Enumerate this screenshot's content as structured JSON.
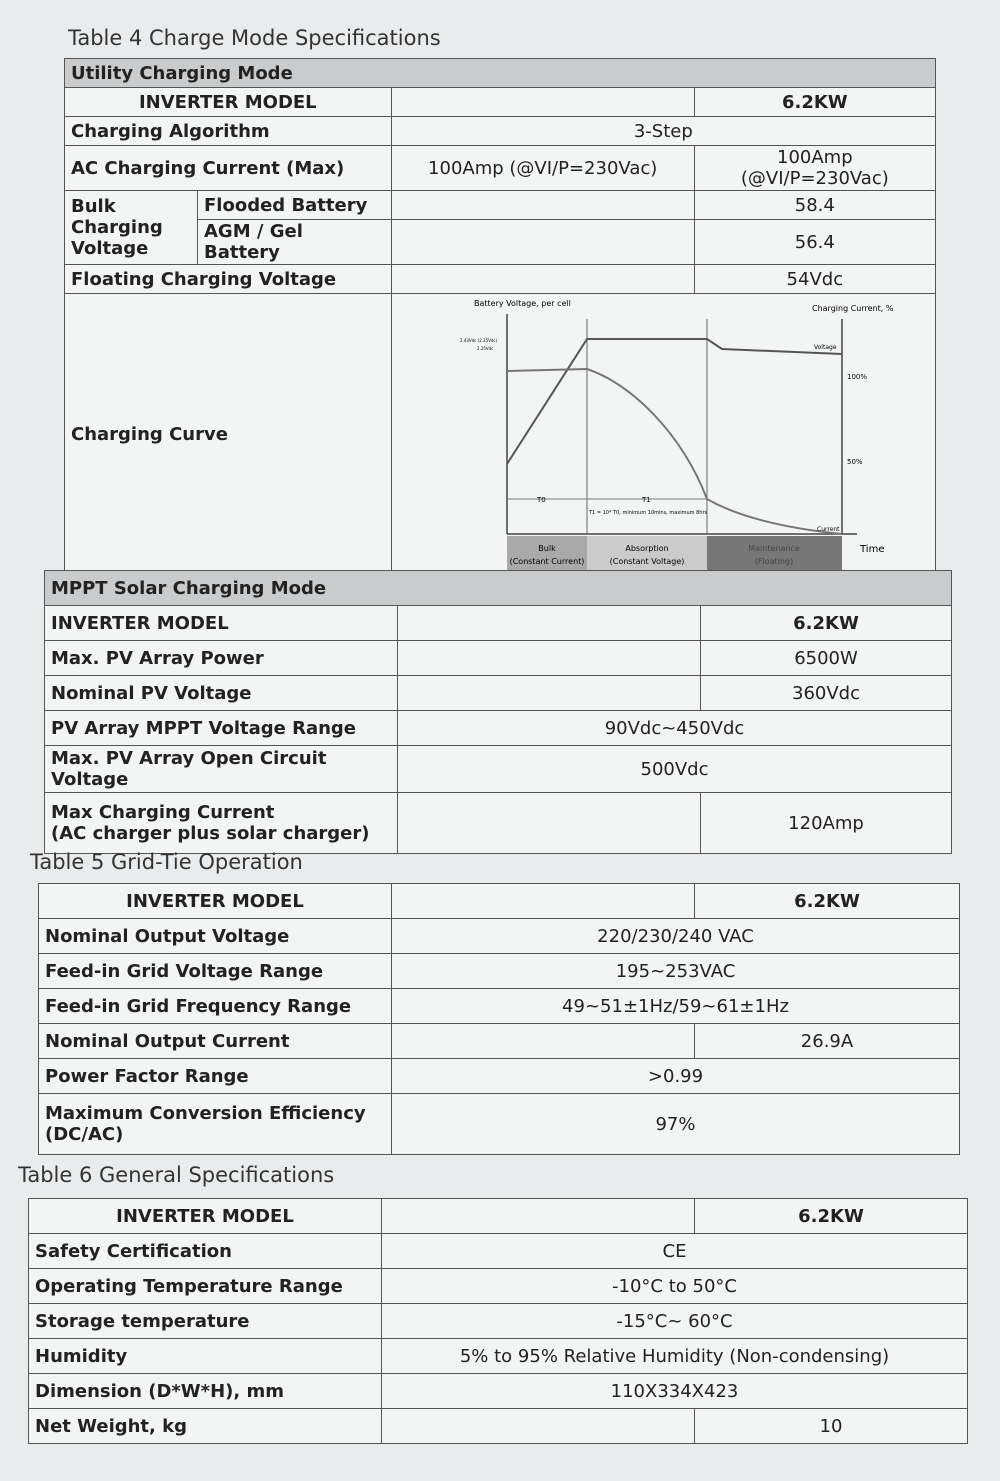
{
  "table4": {
    "caption": "Table 4 Charge Mode Specifications",
    "section": "Utility Charging Mode",
    "model_label": "INVERTER MODEL",
    "model": "6.2KW",
    "rows": [
      {
        "label": "Charging Algorithm",
        "value": "3-Step"
      },
      {
        "label": "AC Charging Current (Max)",
        "value_a": "100Amp (@VI/P=230Vac)",
        "value_b": "100Amp (@VI/P=230Vac)"
      },
      {
        "label": "Flooded Battery",
        "value": "58.4"
      },
      {
        "label": "AGM / Gel Battery",
        "value": "56.4"
      },
      {
        "label": "Floating Charging Voltage",
        "value": "54Vdc"
      }
    ],
    "bulk_label_1": "Bulk Charging",
    "bulk_label_2": "Voltage",
    "curve_label": "Charging Curve",
    "curve": {
      "y_left": "Battery Voltage, per cell",
      "y_right": "Charging Current, %",
      "v1": "2.43Vdc (2.35Vdc)",
      "v2": "2.25Vdc",
      "pct100": "100%",
      "pct50": "50%",
      "voltage": "Voltage",
      "current": "Current",
      "time": "Time",
      "t0": "T0",
      "t1": "T1",
      "t1_note": "T1 = 10* T0, minimum 10mins, maximum 8hrs",
      "bulk": "Bulk",
      "bulk_sub": "(Constant Current)",
      "abs": "Absorption",
      "abs_sub": "(Constant Voltage)",
      "maint": "Maintenance",
      "maint_sub": "(Floating)"
    }
  },
  "mppt": {
    "section": "MPPT Solar Charging Mode",
    "rows": [
      {
        "label": "INVERTER MODEL",
        "value": "6.2KW"
      },
      {
        "label": "Max. PV Array Power",
        "value": "6500W"
      },
      {
        "label": "Nominal PV Voltage",
        "value": "360Vdc"
      },
      {
        "label": "PV Array MPPT Voltage Range",
        "value": "90Vdc~450Vdc"
      },
      {
        "label": "Max. PV Array Open Circuit Voltage",
        "value": "500Vdc"
      },
      {
        "label": "Max Charging Current",
        "label2": "(AC charger plus solar charger)",
        "value": "120Amp"
      }
    ]
  },
  "table5": {
    "caption": "Table 5 Grid-Tie Operation",
    "rows": [
      {
        "label": "INVERTER MODEL",
        "value": "6.2KW"
      },
      {
        "label": "Nominal Output Voltage",
        "value": "220/230/240 VAC"
      },
      {
        "label": "Feed-in Grid Voltage Range",
        "value": "195~253VAC"
      },
      {
        "label": "Feed-in Grid Frequency Range",
        "value": "49~51±1Hz/59~61±1Hz"
      },
      {
        "label": "Nominal Output Current",
        "value": "26.9A"
      },
      {
        "label": "Power Factor Range",
        "value": ">0.99"
      },
      {
        "label": "Maximum Conversion Efficiency",
        "label2": "(DC/AC)",
        "value": "97%"
      }
    ]
  },
  "table6": {
    "caption": "Table 6 General Specifications",
    "rows": [
      {
        "label": "INVERTER MODEL",
        "value": "6.2KW"
      },
      {
        "label": "Safety Certification",
        "value": "CE"
      },
      {
        "label": "Operating Temperature Range",
        "value": "-10°C to 50°C"
      },
      {
        "label": "Storage temperature",
        "value": "-15°C~ 60°C"
      },
      {
        "label": "Humidity",
        "value": "5% to 95% Relative Humidity (Non-condensing)"
      },
      {
        "label": "Dimension (D*W*H), mm",
        "value": "110X334X423"
      },
      {
        "label": "Net Weight, kg",
        "value": "10"
      }
    ]
  }
}
